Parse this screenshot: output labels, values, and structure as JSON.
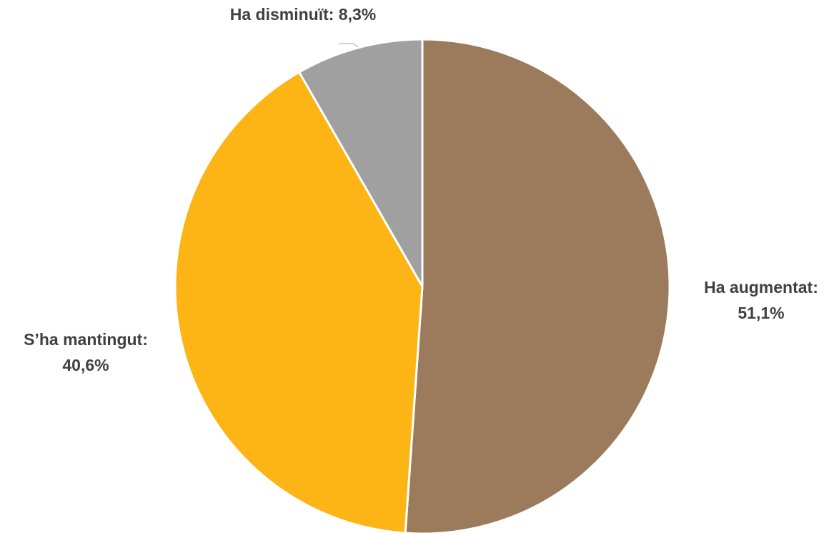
{
  "chart_data": {
    "type": "pie",
    "slices": [
      {
        "label": "Ha augmentat",
        "value": 51.1,
        "display": "51,1%",
        "color": "#9B7B5B"
      },
      {
        "label": "S’ha mantingut",
        "value": 40.6,
        "display": "40,6%",
        "color": "#FDB515"
      },
      {
        "label": "Ha disminuït",
        "value": 8.3,
        "display": "8,3%",
        "color": "#A0A0A0"
      }
    ],
    "labels": {
      "augmentat": {
        "line1": "Ha augmentat:",
        "line2": "51,1%"
      },
      "mantingut": {
        "line1": "S’ha mantingut:",
        "line2": "40,6%"
      },
      "disminuit": {
        "line1": "Ha disminuït: 8,3%"
      }
    },
    "start_angle": "12 o'clock",
    "direction": "clockwise"
  }
}
